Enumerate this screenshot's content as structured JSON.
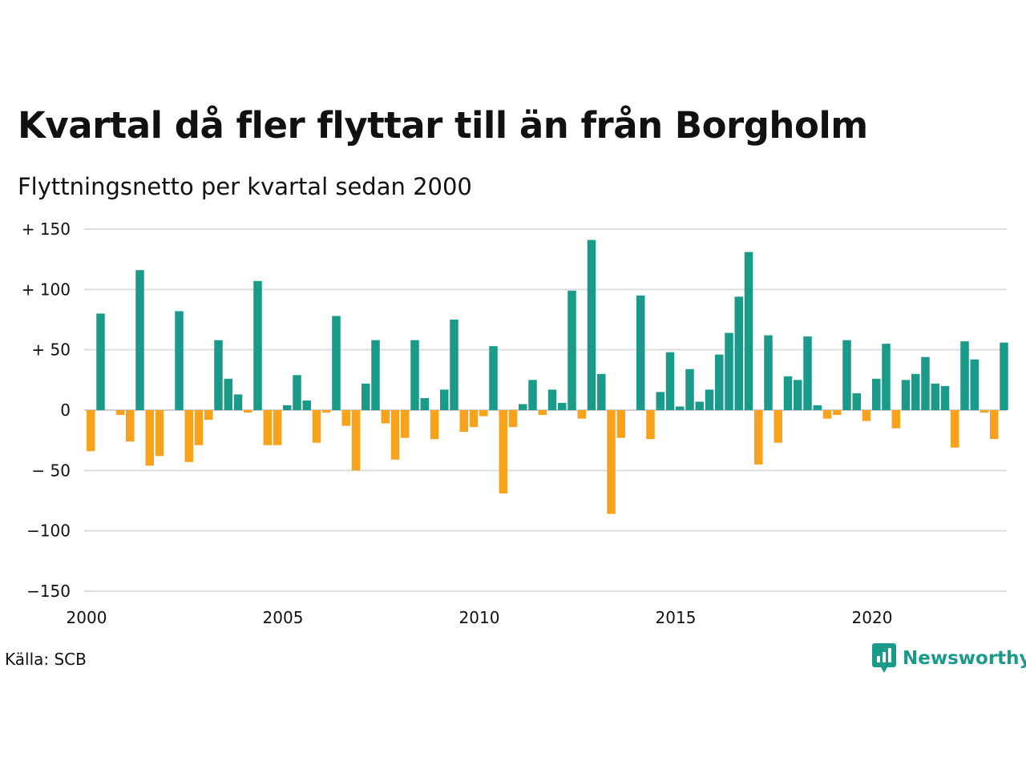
{
  "title": "Kvartal då fler flyttar till än från Borgholm",
  "subtitle": "Flyttningsnetto per kvartal sedan 2000",
  "source": "Källa: SCB",
  "brand": {
    "name": "Newsworthy",
    "icon": "newsworthy-logo-icon",
    "color": "#1a9a89"
  },
  "colors": {
    "positive": "#1a9a89",
    "negative": "#f8a11b",
    "grid": "#dddddd"
  },
  "chart_data": {
    "type": "bar",
    "title": "Kvartal då fler flyttar till än från Borgholm",
    "subtitle": "Flyttningsnetto per kvartal sedan 2000",
    "xlabel": "",
    "ylabel": "",
    "x_ticks": [
      "2000",
      "2005",
      "2010",
      "2015",
      "2020"
    ],
    "y_ticks": [
      {
        "value": 150,
        "label": "+ 150"
      },
      {
        "value": 100,
        "label": "+ 100"
      },
      {
        "value": 50,
        "label": "+  50"
      },
      {
        "value": 0,
        "label": "0"
      },
      {
        "value": -50,
        "label": "− 50"
      },
      {
        "value": -100,
        "label": "−100"
      },
      {
        "value": -150,
        "label": "−150"
      }
    ],
    "ylim": [
      -150,
      150
    ],
    "grid": true,
    "legend": "none",
    "start": "2000 Q1",
    "frequency": "quarterly",
    "values": [
      -34,
      80,
      0,
      -4,
      -26,
      116,
      -46,
      -38,
      0,
      82,
      -43,
      -29,
      -8,
      58,
      26,
      13,
      -2,
      107,
      -29,
      -29,
      4,
      29,
      8,
      -27,
      -2,
      78,
      -13,
      -50,
      22,
      58,
      -11,
      -41,
      -23,
      58,
      10,
      -24,
      17,
      75,
      -18,
      -14,
      -5,
      53,
      -69,
      -14,
      5,
      25,
      -4,
      17,
      6,
      99,
      -7,
      141,
      30,
      -86,
      -23,
      0,
      95,
      -24,
      15,
      48,
      3,
      34,
      7,
      17,
      46,
      64,
      94,
      131,
      -45,
      62,
      -27,
      28,
      25,
      61,
      4,
      -7,
      -4,
      58,
      14,
      -9,
      26,
      55,
      -15,
      25,
      30,
      44,
      22,
      20,
      -31,
      57,
      42,
      -2,
      -24,
      56
    ]
  }
}
